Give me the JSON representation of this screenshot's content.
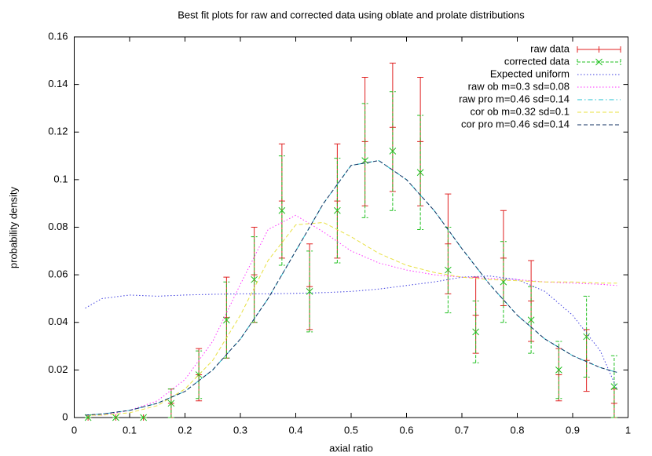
{
  "chart_data": {
    "type": "line",
    "title": "Best fit plots for raw and corrected data using oblate and prolate distributions",
    "xlabel": "axial ratio",
    "ylabel": "probability density",
    "xlim": [
      0,
      1
    ],
    "ylim": [
      0,
      0.16
    ],
    "xticks": [
      0,
      0.1,
      0.2,
      0.3,
      0.4,
      0.5,
      0.6,
      0.7,
      0.8,
      0.9,
      1
    ],
    "yticks": [
      0,
      0.02,
      0.04,
      0.06,
      0.08,
      0.1,
      0.12,
      0.14,
      0.16
    ],
    "legend": "top-right",
    "series": [
      {
        "name": "raw data",
        "color": "#e02020",
        "style": "errorbars",
        "marker": "plus",
        "x": [
          0.025,
          0.075,
          0.125,
          0.175,
          0.225,
          0.275,
          0.325,
          0.375,
          0.425,
          0.475,
          0.525,
          0.575,
          0.625,
          0.675,
          0.725,
          0.775,
          0.825,
          0.875,
          0.925,
          0.975
        ],
        "values": [
          0,
          0,
          0,
          0.006,
          0.018,
          0.042,
          0.06,
          0.091,
          0.055,
          0.091,
          0.116,
          0.122,
          0.116,
          0.073,
          0.043,
          0.067,
          0.049,
          0.018,
          0.024,
          0.006
        ],
        "errors": [
          0,
          0,
          0,
          0.006,
          0.011,
          0.017,
          0.02,
          0.024,
          0.018,
          0.024,
          0.027,
          0.027,
          0.027,
          0.021,
          0.016,
          0.02,
          0.017,
          0.011,
          0.013,
          0.006
        ]
      },
      {
        "name": "corrected data",
        "color": "#20c020",
        "style": "errorbars",
        "marker": "cross",
        "x": [
          0.025,
          0.075,
          0.125,
          0.175,
          0.225,
          0.275,
          0.325,
          0.375,
          0.425,
          0.475,
          0.525,
          0.575,
          0.625,
          0.675,
          0.725,
          0.775,
          0.825,
          0.875,
          0.925,
          0.975
        ],
        "values": [
          0,
          0,
          0,
          0.006,
          0.018,
          0.041,
          0.058,
          0.087,
          0.053,
          0.087,
          0.108,
          0.112,
          0.103,
          0.062,
          0.036,
          0.057,
          0.041,
          0.02,
          0.034,
          0.013
        ],
        "errors": [
          0,
          0,
          0,
          0.006,
          0.01,
          0.016,
          0.018,
          0.023,
          0.017,
          0.022,
          0.024,
          0.025,
          0.024,
          0.018,
          0.013,
          0.017,
          0.014,
          0.012,
          0.017,
          0.013
        ]
      },
      {
        "name": "Expected uniform",
        "color": "#4040e0",
        "style": "dotted",
        "x": [
          0.02,
          0.05,
          0.1,
          0.15,
          0.2,
          0.25,
          0.3,
          0.35,
          0.4,
          0.45,
          0.5,
          0.55,
          0.6,
          0.65,
          0.7,
          0.75,
          0.8,
          0.85,
          0.9,
          0.95,
          0.98
        ],
        "values": [
          0.046,
          0.05,
          0.0515,
          0.051,
          0.0515,
          0.0518,
          0.052,
          0.052,
          0.0522,
          0.0525,
          0.053,
          0.054,
          0.0555,
          0.057,
          0.059,
          0.0595,
          0.058,
          0.053,
          0.043,
          0.028,
          0.012
        ]
      },
      {
        "name": "raw ob m=0.3 sd=0.08",
        "color": "#ff30ff",
        "style": "dotted",
        "x": [
          0.02,
          0.05,
          0.1,
          0.15,
          0.2,
          0.25,
          0.3,
          0.35,
          0.4,
          0.45,
          0.5,
          0.55,
          0.6,
          0.65,
          0.7,
          0.75,
          0.8,
          0.85,
          0.9,
          0.95,
          0.98
        ],
        "values": [
          0.001,
          0.001,
          0.003,
          0.007,
          0.016,
          0.032,
          0.056,
          0.079,
          0.085,
          0.078,
          0.07,
          0.065,
          0.062,
          0.06,
          0.059,
          0.0585,
          0.058,
          0.057,
          0.0565,
          0.056,
          0.0555
        ]
      },
      {
        "name": "raw pro m=0.46 sd=0.14",
        "color": "#20c0d0",
        "style": "dash-dot",
        "x": [
          0.02,
          0.05,
          0.1,
          0.15,
          0.2,
          0.25,
          0.3,
          0.35,
          0.4,
          0.45,
          0.5,
          0.55,
          0.6,
          0.65,
          0.7,
          0.75,
          0.8,
          0.85,
          0.9,
          0.95,
          0.98
        ],
        "values": [
          0.001,
          0.0015,
          0.003,
          0.006,
          0.011,
          0.02,
          0.033,
          0.05,
          0.07,
          0.09,
          0.106,
          0.108,
          0.1,
          0.087,
          0.071,
          0.056,
          0.043,
          0.033,
          0.026,
          0.021,
          0.019
        ]
      },
      {
        "name": "cor ob m=0.32 sd=0.1",
        "color": "#e8e040",
        "style": "dashed",
        "x": [
          0.02,
          0.05,
          0.1,
          0.15,
          0.2,
          0.25,
          0.3,
          0.35,
          0.4,
          0.45,
          0.5,
          0.55,
          0.6,
          0.65,
          0.7,
          0.75,
          0.8,
          0.85,
          0.9,
          0.95,
          0.98
        ],
        "values": [
          0.001,
          0.001,
          0.002,
          0.005,
          0.012,
          0.024,
          0.043,
          0.066,
          0.081,
          0.082,
          0.076,
          0.069,
          0.064,
          0.061,
          0.059,
          0.058,
          0.0575,
          0.057,
          0.057,
          0.0565,
          0.0565
        ]
      },
      {
        "name": "cor pro m=0.46 sd=0.14",
        "color": "#103060",
        "style": "dashed",
        "x": [
          0.02,
          0.05,
          0.1,
          0.15,
          0.2,
          0.25,
          0.3,
          0.35,
          0.4,
          0.45,
          0.5,
          0.55,
          0.6,
          0.65,
          0.7,
          0.75,
          0.8,
          0.85,
          0.9,
          0.95,
          0.98
        ],
        "values": [
          0.001,
          0.0015,
          0.003,
          0.006,
          0.011,
          0.02,
          0.033,
          0.05,
          0.07,
          0.09,
          0.106,
          0.108,
          0.1,
          0.087,
          0.071,
          0.056,
          0.043,
          0.033,
          0.026,
          0.021,
          0.019
        ]
      }
    ]
  }
}
